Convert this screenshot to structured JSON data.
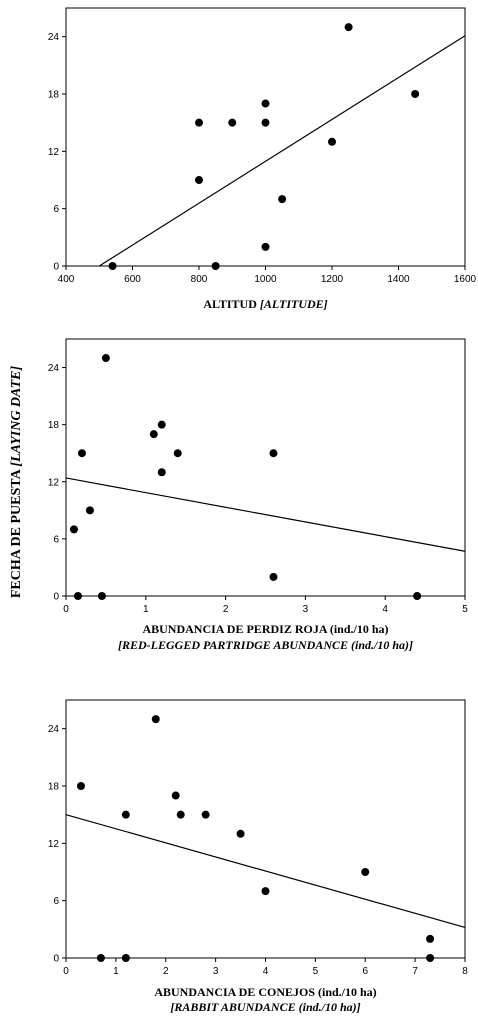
{
  "y_axis_label": {
    "main": "FECHA DE PUESTA ",
    "translation": "[LAYING DATE]"
  },
  "chart_data": [
    {
      "type": "scatter",
      "xlabel_main": "ALTITUD ",
      "xlabel_translation": "[ALTITUDE]",
      "xlim": [
        400,
        1600
      ],
      "ylim": [
        0,
        27
      ],
      "xticks": [
        400,
        600,
        800,
        1000,
        1200,
        1400,
        1600
      ],
      "yticks": [
        0,
        6,
        12,
        18,
        24
      ],
      "grid": false,
      "points": [
        {
          "x": 540,
          "y": 0
        },
        {
          "x": 800,
          "y": 9
        },
        {
          "x": 800,
          "y": 15
        },
        {
          "x": 850,
          "y": 0
        },
        {
          "x": 900,
          "y": 15
        },
        {
          "x": 1000,
          "y": 17
        },
        {
          "x": 1000,
          "y": 15
        },
        {
          "x": 1000,
          "y": 2
        },
        {
          "x": 1050,
          "y": 7
        },
        {
          "x": 1200,
          "y": 13
        },
        {
          "x": 1250,
          "y": 25
        },
        {
          "x": 1450,
          "y": 18
        }
      ],
      "trendline": {
        "x": [
          500,
          1600
        ],
        "y": [
          0,
          24.1
        ]
      }
    },
    {
      "type": "scatter",
      "xlabel_main": "ABUNDANCIA DE PERDIZ ROJA (ind./10 ha)",
      "xlabel_translation": "[RED-LEGGED PARTRIDGE ABUNDANCE (ind./10 ha)]",
      "xlim": [
        0,
        5
      ],
      "ylim": [
        0,
        27
      ],
      "xticks": [
        0,
        1,
        2,
        3,
        4,
        5
      ],
      "yticks": [
        0,
        6,
        12,
        18,
        24
      ],
      "grid": false,
      "points": [
        {
          "x": 0.1,
          "y": 7
        },
        {
          "x": 0.15,
          "y": 0
        },
        {
          "x": 0.2,
          "y": 15
        },
        {
          "x": 0.3,
          "y": 9
        },
        {
          "x": 0.45,
          "y": 0
        },
        {
          "x": 0.5,
          "y": 25
        },
        {
          "x": 1.1,
          "y": 17
        },
        {
          "x": 1.2,
          "y": 18
        },
        {
          "x": 1.2,
          "y": 13
        },
        {
          "x": 1.4,
          "y": 15
        },
        {
          "x": 2.6,
          "y": 15
        },
        {
          "x": 2.6,
          "y": 2
        },
        {
          "x": 4.4,
          "y": 0
        }
      ],
      "trendline": {
        "x": [
          0,
          5
        ],
        "y": [
          12.4,
          4.7
        ]
      }
    },
    {
      "type": "scatter",
      "xlabel_main": "ABUNDANCIA DE CONEJOS (ind./10 ha)",
      "xlabel_translation": "[RABBIT ABUNDANCE (ind./10 ha)]",
      "xlim": [
        0,
        8
      ],
      "ylim": [
        0,
        27
      ],
      "xticks": [
        0,
        1,
        2,
        3,
        4,
        5,
        6,
        7,
        8
      ],
      "yticks": [
        0,
        6,
        12,
        18,
        24
      ],
      "grid": false,
      "points": [
        {
          "x": 0.3,
          "y": 18
        },
        {
          "x": 0.7,
          "y": 0
        },
        {
          "x": 1.2,
          "y": 15
        },
        {
          "x": 1.2,
          "y": 0
        },
        {
          "x": 1.8,
          "y": 25
        },
        {
          "x": 2.2,
          "y": 17
        },
        {
          "x": 2.3,
          "y": 15
        },
        {
          "x": 2.8,
          "y": 15
        },
        {
          "x": 3.5,
          "y": 13
        },
        {
          "x": 4.0,
          "y": 7
        },
        {
          "x": 6.0,
          "y": 9
        },
        {
          "x": 7.3,
          "y": 2
        },
        {
          "x": 7.3,
          "y": 0
        }
      ],
      "trendline": {
        "x": [
          0,
          8
        ],
        "y": [
          15,
          3.2
        ]
      }
    }
  ]
}
